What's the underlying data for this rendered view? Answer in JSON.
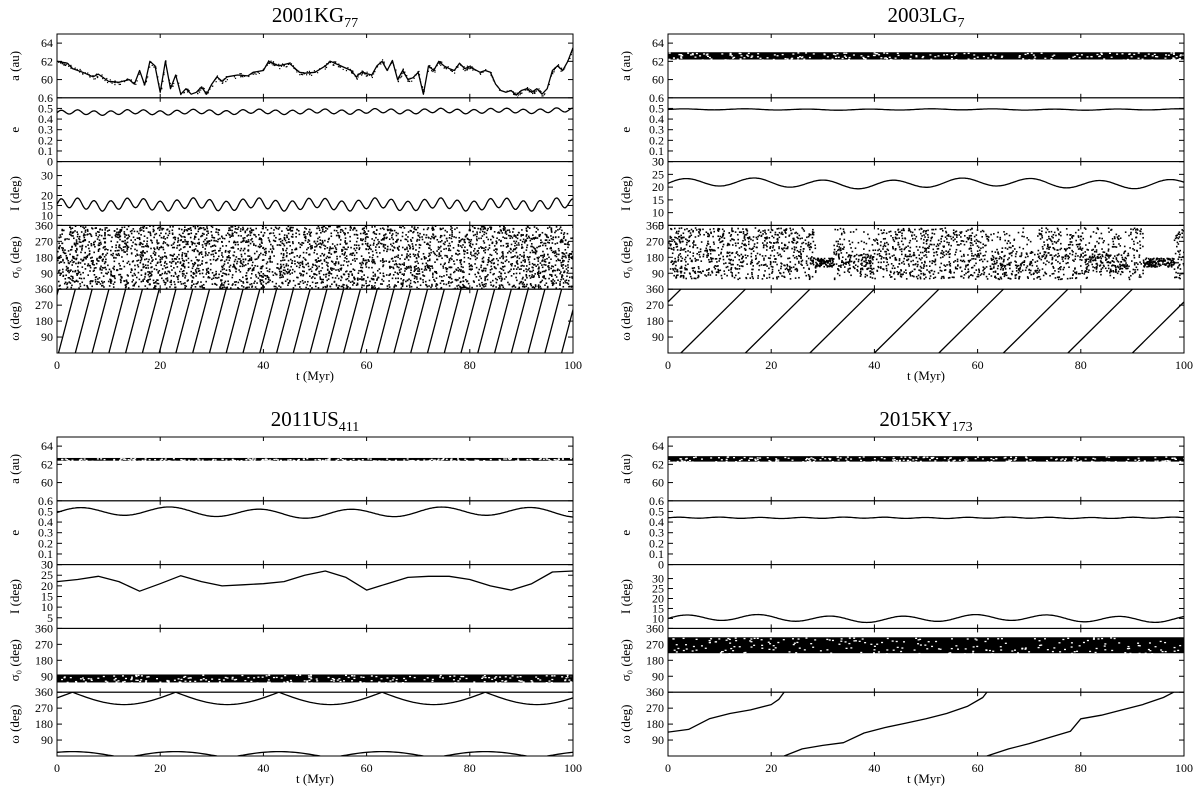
{
  "chart_data": [
    {
      "type": "line",
      "title": "2001KG",
      "title_sub": "77",
      "xlabel": "t (Myr)",
      "xlim": [
        0,
        100
      ],
      "xticks": [
        0,
        20,
        40,
        60,
        80,
        100
      ],
      "panels": [
        {
          "name": "a",
          "ylabel": "a (au)",
          "ylim": [
            58,
            65
          ],
          "yticks": [
            60,
            62,
            64
          ],
          "style": "line",
          "points": [
            [
              0,
              62
            ],
            [
              2,
              61.8
            ],
            [
              3,
              61.2
            ],
            [
              5,
              60.8
            ],
            [
              7,
              60.3
            ],
            [
              8,
              60.6
            ],
            [
              10,
              59.8
            ],
            [
              12,
              59.7
            ],
            [
              14,
              60.0
            ],
            [
              15,
              59.5
            ],
            [
              16,
              61.0
            ],
            [
              17,
              59.4
            ],
            [
              18,
              62.0
            ],
            [
              19,
              61.5
            ],
            [
              20,
              58.6
            ],
            [
              21,
              62.0
            ],
            [
              22,
              59.0
            ],
            [
              23,
              60.5
            ],
            [
              24,
              58.4
            ],
            [
              25,
              59.0
            ],
            [
              26,
              58.4
            ],
            [
              27,
              58.6
            ],
            [
              28,
              59.2
            ],
            [
              29,
              58.4
            ],
            [
              30,
              59.5
            ],
            [
              31,
              60.3
            ],
            [
              32,
              59.8
            ],
            [
              33,
              60.3
            ],
            [
              35,
              60.5
            ],
            [
              37,
              60.4
            ],
            [
              38,
              60.8
            ],
            [
              40,
              61.0
            ],
            [
              41,
              62.0
            ],
            [
              43,
              61.5
            ],
            [
              45,
              61.8
            ],
            [
              47,
              60.8
            ],
            [
              48,
              60.7
            ],
            [
              50,
              60.8
            ],
            [
              52,
              61.5
            ],
            [
              53,
              62.0
            ],
            [
              55,
              61.5
            ],
            [
              57,
              61.0
            ],
            [
              58,
              60.3
            ],
            [
              59,
              60.8
            ],
            [
              61,
              60.5
            ],
            [
              62,
              61.5
            ],
            [
              63,
              62.0
            ],
            [
              64,
              61.0
            ],
            [
              65,
              62.1
            ],
            [
              66,
              60.0
            ],
            [
              67,
              61.0
            ],
            [
              68,
              60.0
            ],
            [
              69,
              60.2
            ],
            [
              70,
              60.8
            ],
            [
              71,
              58.4
            ],
            [
              72,
              61.5
            ],
            [
              73,
              61.0
            ],
            [
              74,
              62.0
            ],
            [
              75,
              61.5
            ],
            [
              76,
              61.2
            ],
            [
              77,
              61.0
            ],
            [
              78,
              61.8
            ],
            [
              79,
              61.2
            ],
            [
              80,
              61.4
            ],
            [
              82,
              60.8
            ],
            [
              83,
              61.0
            ],
            [
              84,
              60.8
            ],
            [
              85,
              59.5
            ],
            [
              86,
              58.8
            ],
            [
              87,
              58.6
            ],
            [
              88,
              58.8
            ],
            [
              89,
              58.3
            ],
            [
              90,
              58.8
            ],
            [
              91,
              59.0
            ],
            [
              92,
              58.6
            ],
            [
              93,
              59.0
            ],
            [
              94,
              58.4
            ],
            [
              95,
              59.0
            ],
            [
              96,
              61.0
            ],
            [
              97,
              61.5
            ],
            [
              98,
              61.0
            ],
            [
              99,
              62.0
            ],
            [
              100,
              63.5
            ]
          ]
        },
        {
          "name": "e",
          "ylabel": "e",
          "ylim": [
            0,
            0.6
          ],
          "yticks": [
            0,
            0.1,
            0.2,
            0.3,
            0.4,
            0.5,
            0.6
          ],
          "style": "wave",
          "wave": {
            "mean": 0.46,
            "amp": 0.02,
            "period": 3.2,
            "trend": 0.0002
          }
        },
        {
          "name": "I",
          "ylabel": "I (deg)",
          "ylim": [
            5,
            37
          ],
          "yticks": [
            10,
            15,
            20,
            25,
            30
          ],
          "tick_labels": [
            "10",
            "15",
            "20",
            "",
            "30"
          ],
          "style": "wave",
          "wave": {
            "mean": 15.5,
            "amp": 2.5,
            "period": 3.2,
            "trend": 0
          }
        },
        {
          "name": "sigma",
          "ylabel": "σ₀ (deg)",
          "ylim": [
            0,
            360
          ],
          "yticks": [
            90,
            180,
            270,
            360
          ],
          "style": "scatter",
          "scatter": {
            "lo": 0,
            "hi": 360,
            "n": 3600
          }
        },
        {
          "name": "omega",
          "ylabel": "ω (deg)",
          "ylim": [
            0,
            360
          ],
          "yticks": [
            90,
            180,
            270,
            360
          ],
          "style": "sawtooth",
          "saw": {
            "period": 3.25,
            "phase": 0.3
          }
        }
      ]
    },
    {
      "type": "line",
      "title": "2003LG",
      "title_sub": "7",
      "xlabel": "t (Myr)",
      "xlim": [
        0,
        100
      ],
      "xticks": [
        0,
        20,
        40,
        60,
        80,
        100
      ],
      "panels": [
        {
          "name": "a",
          "ylabel": "a (au)",
          "ylim": [
            58,
            65
          ],
          "yticks": [
            60,
            62,
            64
          ],
          "style": "band",
          "band": {
            "lo": 62.2,
            "hi": 63.0
          }
        },
        {
          "name": "e",
          "ylabel": "e",
          "ylim": [
            0,
            0.6
          ],
          "yticks": [
            0,
            0.1,
            0.2,
            0.3,
            0.4,
            0.5,
            0.6
          ],
          "style": "wave",
          "wave": {
            "mean": 0.49,
            "amp": 0.005,
            "period": 12,
            "trend": 0
          }
        },
        {
          "name": "I",
          "ylabel": "I (deg)",
          "ylim": [
            5,
            30
          ],
          "yticks": [
            5,
            10,
            15,
            20,
            25,
            30
          ],
          "style": "wave",
          "wave": {
            "mean": 21.5,
            "amp": 1.6,
            "period": 13.4,
            "trend": 0
          }
        },
        {
          "name": "sigma",
          "ylabel": "σ₀ (deg)",
          "ylim": [
            0,
            360
          ],
          "yticks": [
            90,
            180,
            270,
            360
          ],
          "style": "scatter",
          "scatter": {
            "lo": 60,
            "hi": 350,
            "n": 2600,
            "gaps": [
              [
                28.5,
                32
              ],
              [
                92,
                98
              ]
            ],
            "dense": [
              [
                34,
                40,
                100,
                200
              ],
              [
                62,
                72,
                60,
                215
              ],
              [
                80,
                89,
                100,
                200
              ]
            ]
          }
        },
        {
          "name": "omega",
          "ylabel": "ω (deg)",
          "ylim": [
            0,
            360
          ],
          "yticks": [
            90,
            180,
            270,
            360
          ],
          "style": "sawtooth",
          "saw": {
            "period": 12.5,
            "phase": 2.5
          }
        }
      ]
    },
    {
      "type": "line",
      "title": "2011US",
      "title_sub": "411",
      "xlabel": "t (Myr)",
      "xlim": [
        0,
        100
      ],
      "xticks": [
        0,
        20,
        40,
        60,
        80,
        100
      ],
      "panels": [
        {
          "name": "a",
          "ylabel": "a (au)",
          "ylim": [
            58,
            65
          ],
          "yticks": [
            60,
            62,
            64
          ],
          "style": "band",
          "band": {
            "lo": 62.4,
            "hi": 62.7
          }
        },
        {
          "name": "e",
          "ylabel": "e",
          "ylim": [
            0,
            0.6
          ],
          "yticks": [
            0,
            0.1,
            0.2,
            0.3,
            0.4,
            0.5,
            0.6
          ],
          "style": "wave",
          "wave": {
            "mean": 0.49,
            "amp": 0.04,
            "period": 17.5,
            "trend": 0
          }
        },
        {
          "name": "I",
          "ylabel": "I (deg)",
          "ylim": [
            0,
            30
          ],
          "yticks": [
            5,
            10,
            15,
            20,
            25,
            30
          ],
          "style": "points",
          "points": [
            [
              0,
              22
            ],
            [
              4,
              23
            ],
            [
              8,
              24.5
            ],
            [
              12,
              22
            ],
            [
              16,
              17.5
            ],
            [
              20,
              21
            ],
            [
              24,
              24.8
            ],
            [
              28,
              22
            ],
            [
              32,
              20
            ],
            [
              36,
              20.5
            ],
            [
              40,
              21
            ],
            [
              44,
              22
            ],
            [
              48,
              25
            ],
            [
              52,
              27
            ],
            [
              56,
              24
            ],
            [
              60,
              18
            ],
            [
              64,
              21
            ],
            [
              68,
              24
            ],
            [
              72,
              24.5
            ],
            [
              76,
              24.5
            ],
            [
              80,
              23
            ],
            [
              84,
              20
            ],
            [
              88,
              18
            ],
            [
              92,
              21
            ],
            [
              96,
              26.5
            ],
            [
              100,
              27
            ]
          ]
        },
        {
          "name": "sigma",
          "ylabel": "σ₀ (deg)",
          "ylim": [
            0,
            360
          ],
          "yticks": [
            90,
            180,
            270,
            360
          ],
          "style": "band",
          "band": {
            "lo": 55,
            "hi": 100
          }
        },
        {
          "name": "omega",
          "ylabel": "ω (deg)",
          "ylim": [
            0,
            360
          ],
          "yticks": [
            90,
            180,
            270,
            360
          ],
          "style": "arcs",
          "arcs": {
            "period": 20,
            "phase": 13,
            "top_depth": 70,
            "bottom_peak": 25
          }
        }
      ]
    },
    {
      "type": "line",
      "title": "2015KY",
      "title_sub": "173",
      "xlabel": "t (Myr)",
      "xlim": [
        0,
        100
      ],
      "xticks": [
        0,
        20,
        40,
        60,
        80,
        100
      ],
      "panels": [
        {
          "name": "a",
          "ylabel": "a (au)",
          "ylim": [
            58,
            65
          ],
          "yticks": [
            60,
            62,
            64
          ],
          "style": "band",
          "band": {
            "lo": 62.3,
            "hi": 62.9
          }
        },
        {
          "name": "e",
          "ylabel": "e",
          "ylim": [
            0,
            0.6
          ],
          "yticks": [
            0,
            0.1,
            0.2,
            0.3,
            0.4,
            0.5,
            0.6
          ],
          "style": "wave",
          "wave": {
            "mean": 0.44,
            "amp": 0.005,
            "period": 8,
            "trend": 0
          }
        },
        {
          "name": "I",
          "ylabel": "I (deg)",
          "ylim": [
            5,
            37
          ],
          "yticks": [
            10,
            15,
            20,
            25,
            30
          ],
          "style": "wave",
          "wave": {
            "mean": 10,
            "amp": 1.5,
            "period": 14,
            "trend": 0
          }
        },
        {
          "name": "sigma",
          "ylabel": "σ₀ (deg)",
          "ylim": [
            0,
            360
          ],
          "yticks": [
            90,
            180,
            270,
            360
          ],
          "style": "band",
          "band": {
            "lo": 220,
            "hi": 310
          }
        },
        {
          "name": "omega",
          "ylabel": "ω (deg)",
          "ylim": [
            0,
            360
          ],
          "yticks": [
            90,
            180,
            270,
            360
          ],
          "style": "pieces",
          "pieces": [
            [
              [
                0,
                135
              ],
              [
                4,
                150
              ],
              [
                8,
                210
              ],
              [
                12,
                240
              ],
              [
                16,
                260
              ],
              [
                20,
                290
              ],
              [
                21.5,
                320
              ],
              [
                22.5,
                360
              ]
            ],
            [
              [
                22.5,
                0
              ],
              [
                26,
                40
              ],
              [
                30,
                60
              ],
              [
                34,
                75
              ],
              [
                38,
                130
              ],
              [
                42,
                160
              ],
              [
                46,
                185
              ],
              [
                50,
                210
              ],
              [
                54,
                240
              ],
              [
                58,
                280
              ],
              [
                61,
                330
              ],
              [
                61.8,
                360
              ]
            ],
            [
              [
                61.8,
                0
              ],
              [
                66,
                40
              ],
              [
                70,
                70
              ],
              [
                74,
                105
              ],
              [
                78,
                140
              ],
              [
                80,
                210
              ],
              [
                84,
                230
              ],
              [
                88,
                260
              ],
              [
                92,
                290
              ],
              [
                96,
                330
              ],
              [
                98,
                360
              ]
            ]
          ]
        }
      ]
    }
  ]
}
